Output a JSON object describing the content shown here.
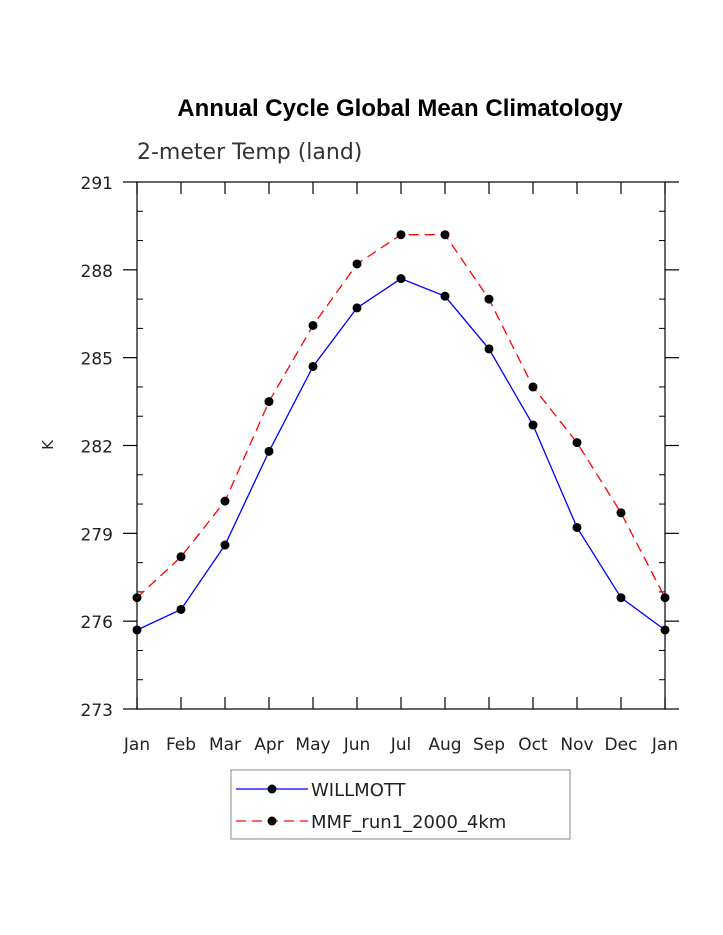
{
  "chart_data": {
    "type": "line",
    "title": "Annual Cycle Global Mean Climatology",
    "subtitle": "2-meter Temp (land)",
    "ylabel": "K",
    "xlabel": "",
    "categories": [
      "Jan",
      "Feb",
      "Mar",
      "Apr",
      "May",
      "Jun",
      "Jul",
      "Aug",
      "Sep",
      "Oct",
      "Nov",
      "Dec",
      "Jan"
    ],
    "ylim": [
      273,
      291
    ],
    "yticks": [
      273,
      276,
      279,
      282,
      285,
      288,
      291
    ],
    "series": [
      {
        "name": "WILLMOTT",
        "color": "#0000ff",
        "dash": "solid",
        "values": [
          275.7,
          276.4,
          278.6,
          281.8,
          284.7,
          286.7,
          287.7,
          287.1,
          285.3,
          282.7,
          279.2,
          276.8,
          275.7
        ]
      },
      {
        "name": "MMF_run1_2000_4km",
        "color": "#ff0000",
        "dash": "dashed",
        "values": [
          276.8,
          278.2,
          280.1,
          283.5,
          286.1,
          288.2,
          289.2,
          289.2,
          287.0,
          284.0,
          282.1,
          279.7,
          276.8
        ]
      }
    ],
    "legend_position": "bottom-center",
    "grid": false
  }
}
